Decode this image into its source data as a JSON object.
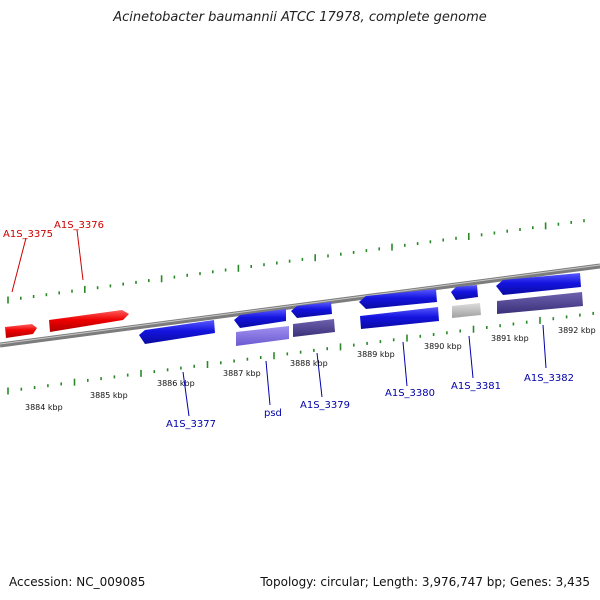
{
  "title": "Acinetobacter baumannii ATCC 17978, complete genome",
  "footer": {
    "accession": "Accession: NC_009085",
    "summary": "Topology: circular; Length: 3,976,747 bp; Genes: 3,435"
  },
  "colors": {
    "forward_gene": "#e00000",
    "reverse_gene": "#1010d8",
    "pale_gene": "#7a6ad8",
    "dark_gene": "#4a3e8a",
    "grey_gene": "#b8b8b8",
    "forward_label": "#cc0000",
    "reverse_label": "#0000aa",
    "tick": "#2a8a2a",
    "axis": "#888888"
  },
  "axis_labels": [
    "3884 kbp",
    "3885 kbp",
    "3886 kbp",
    "3887 kbp",
    "3888 kbp",
    "3889 kbp",
    "3890 kbp",
    "3891 kbp",
    "3892 kbp"
  ],
  "gene_labels": {
    "forward": [
      "A1S_3375",
      "A1S_3376"
    ],
    "reverse": [
      "A1S_3377",
      "psd",
      "A1S_3379",
      "A1S_3380",
      "A1S_3381",
      "A1S_3382"
    ]
  }
}
